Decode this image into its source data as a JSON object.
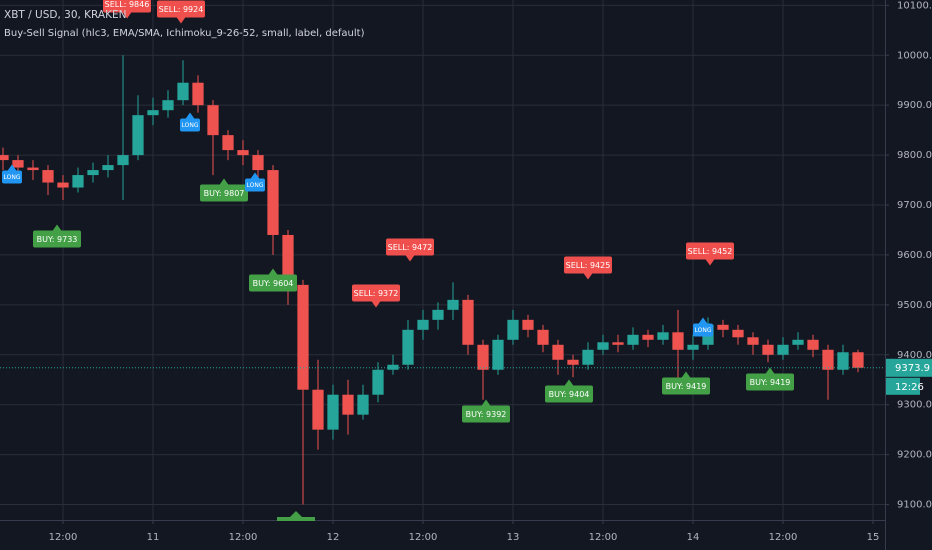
{
  "chart_data": {
    "type": "candlestick",
    "title": "XBT / USD, 30, KRAKEN",
    "subtitle": "Buy-Sell Signal (hlc3, EMA/SMA, Ichimoku_9-26-52, small, label, default)",
    "x": [
      -20,
      -18,
      -16,
      -14,
      -12,
      -10,
      -8,
      -6,
      -4,
      -2,
      0,
      2,
      4,
      6,
      8,
      10,
      12,
      14,
      16,
      18,
      20,
      22,
      24,
      26,
      28,
      30,
      32,
      34,
      36,
      38,
      40,
      42,
      44,
      46,
      48,
      50,
      52,
      54,
      56,
      58,
      60,
      62,
      64,
      66,
      68,
      70,
      72,
      74,
      76,
      78,
      80,
      82,
      84,
      86,
      88,
      90,
      92,
      94
    ],
    "open": [
      9800,
      9790,
      9775,
      9770,
      9745,
      9735,
      9760,
      9770,
      9780,
      9800,
      9880,
      9890,
      9910,
      9945,
      9900,
      9840,
      9810,
      9800,
      9770,
      9640,
      9540,
      9330,
      9250,
      9320,
      9280,
      9320,
      9370,
      9380,
      9450,
      9470,
      9490,
      9510,
      9420,
      9370,
      9430,
      9470,
      9450,
      9420,
      9390,
      9380,
      9410,
      9425,
      9420,
      9440,
      9430,
      9445,
      9410,
      9420,
      9460,
      9450,
      9435,
      9420,
      9400,
      9420,
      9430,
      9410,
      9370,
      9405
    ],
    "high": [
      9815,
      9800,
      9790,
      9780,
      9760,
      9775,
      9785,
      9800,
      10000,
      9920,
      9915,
      9930,
      9990,
      9960,
      9910,
      9850,
      9830,
      9810,
      9780,
      9650,
      9550,
      9390,
      9340,
      9350,
      9340,
      9385,
      9400,
      9470,
      9490,
      9505,
      9545,
      9520,
      9430,
      9440,
      9490,
      9480,
      9460,
      9430,
      9400,
      9425,
      9440,
      9440,
      9455,
      9450,
      9460,
      9490,
      9440,
      9475,
      9470,
      9460,
      9445,
      9430,
      9435,
      9445,
      9440,
      9420,
      9420,
      9410
    ],
    "low": [
      9770,
      9760,
      9750,
      9720,
      9710,
      9725,
      9745,
      9755,
      9710,
      9790,
      9860,
      9875,
      9900,
      9885,
      9760,
      9790,
      9780,
      9740,
      9600,
      9500,
      9100,
      9210,
      9230,
      9240,
      9270,
      9305,
      9360,
      9370,
      9430,
      9450,
      9470,
      9400,
      9310,
      9360,
      9420,
      9435,
      9405,
      9360,
      9355,
      9370,
      9400,
      9405,
      9410,
      9415,
      9420,
      9350,
      9390,
      9410,
      9435,
      9420,
      9400,
      9385,
      9390,
      9410,
      9395,
      9310,
      9360,
      9365
    ],
    "close": [
      9790,
      9775,
      9770,
      9745,
      9735,
      9760,
      9770,
      9780,
      9800,
      9880,
      9890,
      9910,
      9945,
      9900,
      9840,
      9810,
      9800,
      9770,
      9640,
      9540,
      9330,
      9250,
      9320,
      9280,
      9320,
      9370,
      9380,
      9450,
      9470,
      9490,
      9510,
      9420,
      9370,
      9430,
      9470,
      9450,
      9420,
      9390,
      9380,
      9410,
      9425,
      9420,
      9440,
      9430,
      9445,
      9410,
      9420,
      9460,
      9450,
      9435,
      9420,
      9400,
      9420,
      9430,
      9410,
      9370,
      9405,
      9374
    ],
    "up_color": "#26a69a",
    "down_color": "#ef5350",
    "xlim": [
      -20.4,
      97.6
    ],
    "xticks": [
      {
        "value": -12,
        "label": "12:00"
      },
      {
        "value": 0,
        "label": "11"
      },
      {
        "value": 12,
        "label": "12:00"
      },
      {
        "value": 24,
        "label": "12"
      },
      {
        "value": 36,
        "label": "12:00"
      },
      {
        "value": 48,
        "label": "13"
      },
      {
        "value": 60,
        "label": "12:00"
      },
      {
        "value": 72,
        "label": "14"
      },
      {
        "value": 84,
        "label": "12:00"
      },
      {
        "value": 96,
        "label": "15"
      }
    ],
    "ylim": [
      9069,
      10110.7
    ],
    "yticks": [
      {
        "value": 9100,
        "label": "9100.0"
      },
      {
        "value": 9200,
        "label": "9200.0"
      },
      {
        "value": 9300,
        "label": "9300.0"
      },
      {
        "value": 9400,
        "label": "9400.0"
      },
      {
        "value": 9500,
        "label": "9500.0"
      },
      {
        "value": 9600,
        "label": "9600.0"
      },
      {
        "value": 9700,
        "label": "9700.0"
      },
      {
        "value": 9800,
        "label": "9800.0"
      },
      {
        "value": 9900,
        "label": "9900.0"
      },
      {
        "value": 10000,
        "label": "10000.0"
      },
      {
        "value": 10100,
        "label": "10100.0"
      }
    ],
    "grid": true,
    "last_price": 9373.9,
    "countdown": "12:26",
    "last_color": "#26a69a",
    "signals": [
      {
        "label": "SELL: 9846",
        "color": "#f0504d"
      },
      {
        "label": "SELL: 9924",
        "color": "#f0504d"
      },
      {
        "label": "BUY: 9733",
        "color": "#43a047"
      },
      {
        "label": "BUY: 9807",
        "color": "#43a047"
      },
      {
        "label": "BUY: 9604",
        "color": "#43a047"
      },
      {
        "label": "SELL: 9472",
        "color": "#f0504d"
      },
      {
        "label": "SELL: 9372",
        "color": "#f0504d"
      },
      {
        "label": "SELL: 9425",
        "color": "#f0504d"
      },
      {
        "label": "SELL: 9452",
        "color": "#f0504d"
      },
      {
        "label": "BUY: 9392",
        "color": "#43a047"
      },
      {
        "label": "BUY: 9404",
        "color": "#43a047"
      },
      {
        "label": "BUY: 9419",
        "color": "#43a047"
      },
      {
        "label": "BUY: 9419",
        "color": "#43a047"
      },
      {
        "label": "LONG",
        "color": "#2196f3"
      },
      {
        "label": "LONG",
        "color": "#2196f3"
      },
      {
        "label": "LONG",
        "color": "#2196f3"
      },
      {
        "label": "LONG",
        "color": "#2196f3"
      }
    ]
  }
}
